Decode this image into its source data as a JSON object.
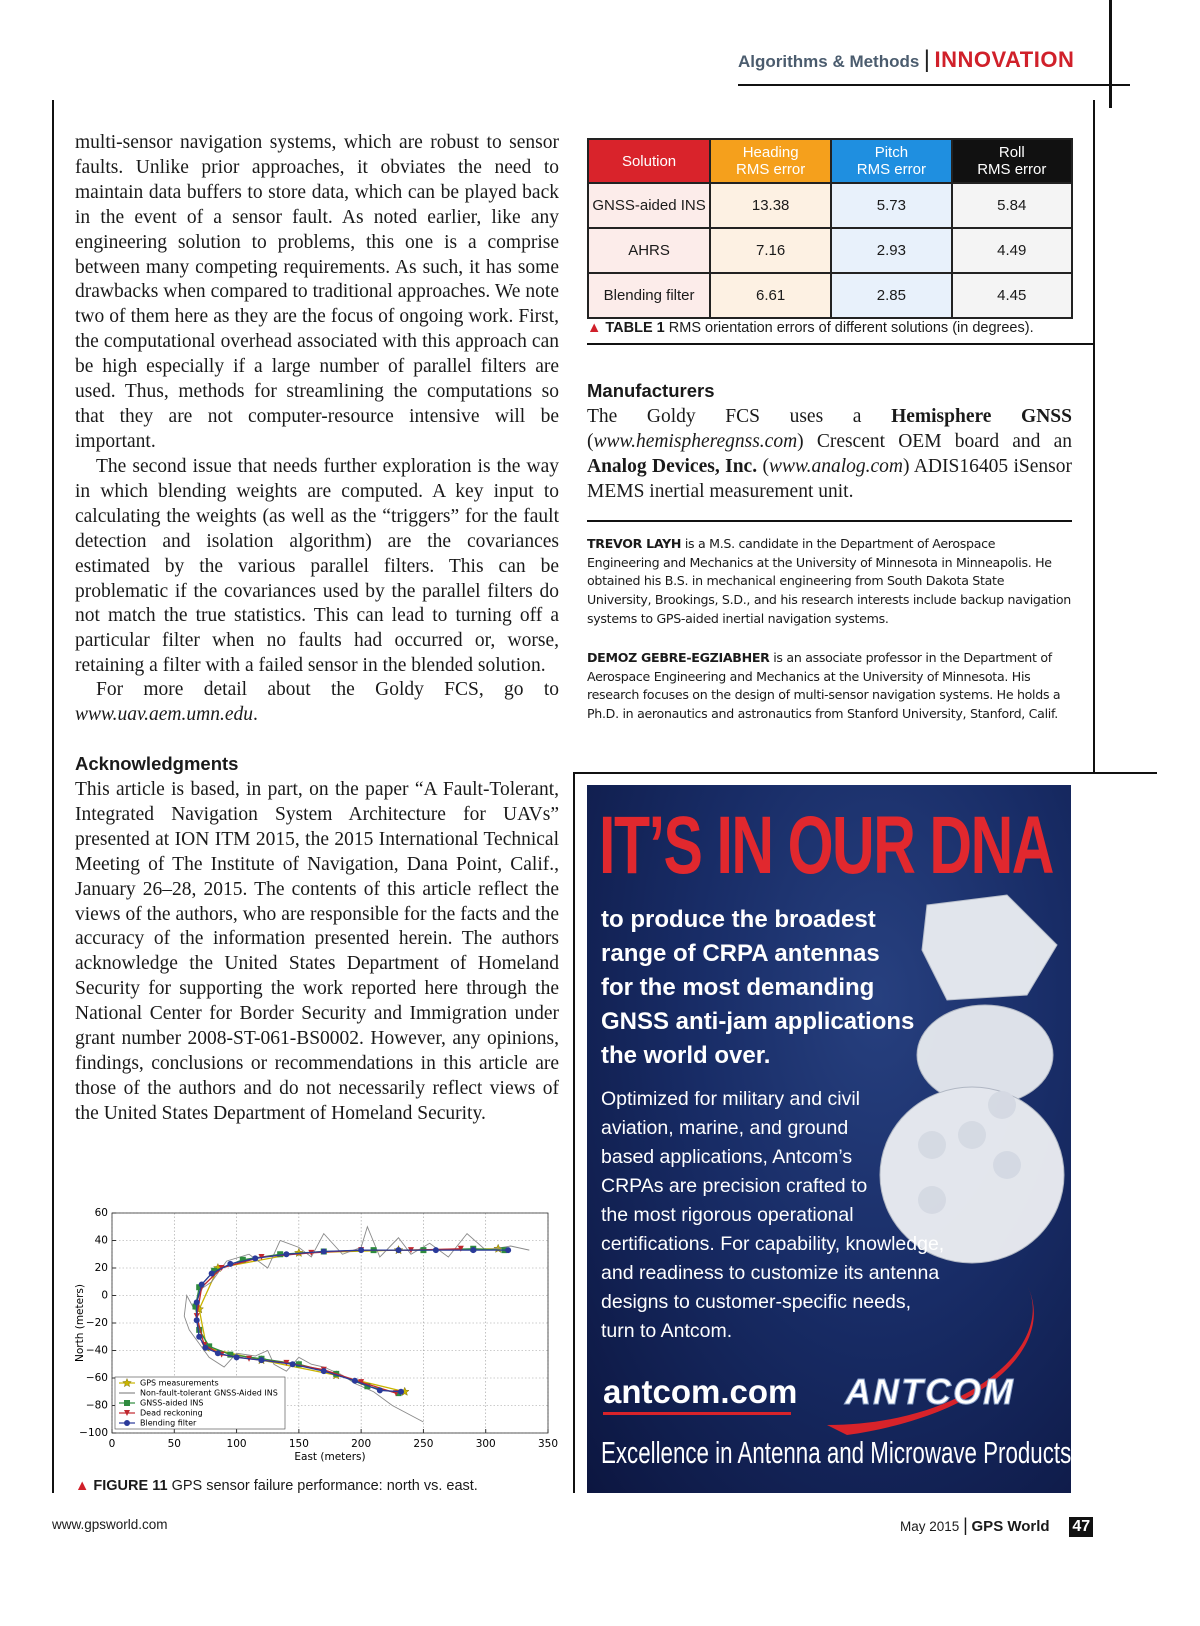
{
  "header": {
    "section": "Algorithms & Methods",
    "separator": "|",
    "department": "INNOVATION"
  },
  "left_column": {
    "paragraphs": [
      [
        {
          "text": "multi-sensor navigation systems, which are robust to sensor faults. Unlike prior approaches, it obviates the need to maintain data buffers to store data, which can be played back in the event of a sensor fault. As noted earlier, like any engineering solution to problems, this one is a comprise between many competing requirements. As such, it has some drawbacks when compared to traditional approaches. We note two of them here as they are the focus of ongoing work. First, the computational overhead associated with this approach can be high especially if a large number of parallel filters are used. Thus, methods for streamlining the computations so that they are not computer-resource intensive will be important.",
          "style": "plain"
        }
      ],
      [
        {
          "text": "The second issue that needs further exploration is the way in which blending weights are computed. A key input to calculating the weights (as well as the “triggers” for the fault detection and isolation algorithm) are the covariances estimated by the various parallel filters. This can be problematic if the covariances used by the parallel filters do not match the true statistics. This can lead to turning off a particular filter when no faults had occurred or, worse, retaining a filter with a failed sensor in the blended solution.",
          "style": "plain"
        }
      ],
      [
        {
          "text": "For more detail about the Goldy FCS, go to ",
          "style": "plain"
        },
        {
          "text": "www.uav.aem.umn.edu",
          "style": "italic"
        },
        {
          "text": ".",
          "style": "plain"
        }
      ]
    ],
    "ack_heading": "Acknowledgments",
    "ack_text": [
      {
        "text": "This article is based, in part, on the paper “A Fault-Tolerant, Integrated Navigation System Architecture for UAVs” presented at ION ITM 2015, the 2015 International Technical Meeting of The Institute of Navigation, Dana Point, Calif., January 26–28, 2015. The contents of this article reflect the views of the authors, who are responsible for the facts and the accuracy of the information presented herein. The authors acknowledge the United States Department of Homeland Security for supporting the work reported here through the National Center for Border Security and Immigration under grant number 2008-ST-061-BS0002. However, any opinions, findings, conclusions or recommendations in this article are those of the authors and do not necessarily reflect views of the United States Department of Homeland Security.",
        "style": "plain"
      }
    ]
  },
  "table": {
    "columns": [
      {
        "label": [
          "Solution"
        ],
        "color": "#d9232b",
        "cell_color": "#fcecea"
      },
      {
        "label": [
          "Heading",
          "RMS error"
        ],
        "color": "#f5a01c",
        "cell_color": "#fdf1e3"
      },
      {
        "label": [
          "Pitch",
          "RMS error"
        ],
        "color": "#1f8fe0",
        "cell_color": "#e8f1fb"
      },
      {
        "label": [
          "Roll",
          "RMS error"
        ],
        "color": "#111111",
        "cell_color": "#f4f4f4"
      }
    ],
    "rows": [
      [
        "GNSS-aided INS",
        "13.38",
        "5.73",
        "5.84"
      ],
      [
        "AHRS",
        "7.16",
        "2.93",
        "4.49"
      ],
      [
        "Blending filter",
        "6.61",
        "2.85",
        "4.45"
      ]
    ],
    "caption_label": "TABLE 1",
    "caption": "RMS orientation errors of different solutions (in degrees)."
  },
  "manufacturers": {
    "heading": "Manufacturers",
    "text": [
      {
        "text": "The Goldy FCS uses a ",
        "style": "plain"
      },
      {
        "text": "Hemisphere GNSS",
        "style": "bold"
      },
      {
        "text": " (",
        "style": "plain"
      },
      {
        "text": "www.hemispheregnss.com",
        "style": "italic"
      },
      {
        "text": ") Crescent OEM board and an ",
        "style": "plain"
      },
      {
        "text": "Analog Devices, Inc.",
        "style": "bold"
      },
      {
        "text": " (",
        "style": "plain"
      },
      {
        "text": "www.analog.com",
        "style": "italic"
      },
      {
        "text": ") ADIS16405 iSensor MEMS inertial measurement unit.",
        "style": "plain"
      }
    ]
  },
  "bios": [
    [
      {
        "text": "TREVOR LAYH",
        "style": "bold"
      },
      {
        "text": " is a M.S. candidate in the Department of Aerospace Engineering and Mechanics at the University of Minnesota in Minneapolis. He obtained his B.S. in mechanical engineering from South Dakota State University, Brookings, S.D., and his research interests include backup navigation systems to GPS-aided inertial navigation systems.",
        "style": "plain"
      }
    ],
    [
      {
        "text": "DEMOZ GEBRE-EGZIABHER",
        "style": "bold"
      },
      {
        "text": " is an associate professor in the Department of Aerospace Engineering and Mechanics at the University of Minnesota. His research focuses on the design of multi-sensor navigation systems. He holds a Ph.D. in aeronautics and astronautics from Stanford University, Stanford, Calif.",
        "style": "plain"
      }
    ]
  ],
  "ad": {
    "headline": "IT’S IN OUR DNA",
    "subhead": [
      "to produce the broadest",
      "range of CRPA antennas",
      "for the most demanding",
      "GNSS anti-jam applications",
      "the world over."
    ],
    "body": [
      "Optimized for military and civil",
      "aviation, marine, and ground",
      "based applications, Antcom’s",
      "CRPAs are precision crafted to",
      "the most rigorous operational",
      "certifications. For capability, knowledge,",
      "and readiness to customize its antenna",
      "designs to customer-specific needs,",
      "turn to Antcom."
    ],
    "url": "antcom.com",
    "logo": "ANTCOM",
    "tagline": "Excellence in Antenna and Microwave Products"
  },
  "figure": {
    "caption_label": "FIGURE 11",
    "caption": "GPS sensor failure performance: north vs. east.",
    "chart_data": {
      "type": "line",
      "xlabel": "East (meters)",
      "ylabel": "North (meters)",
      "xlim": [
        0,
        350
      ],
      "ylim": [
        -100,
        60
      ],
      "xticks": [
        0,
        50,
        100,
        150,
        200,
        250,
        300,
        350
      ],
      "yticks": [
        {
          "value": -100,
          "label": "−100"
        },
        {
          "value": -80,
          "label": "−80"
        },
        {
          "value": -60,
          "label": "−60"
        },
        {
          "value": -40,
          "label": "−40"
        },
        {
          "value": -20,
          "label": "−20"
        },
        0,
        20,
        40,
        60
      ],
      "grid": true,
      "legend": "lower left",
      "series": [
        {
          "name": "GPS measurements",
          "color": "#c9b400",
          "marker": "star",
          "x": [
            235,
            180,
            120,
            76,
            70,
            85,
            150,
            230,
            310
          ],
          "y": [
            -70,
            -58,
            -47,
            -38,
            -10,
            20,
            31,
            33,
            34
          ]
        },
        {
          "name": "Non-fault-tolerant GNSS-Aided INS",
          "color": "#8a8a8a",
          "marker": "none",
          "x": [
            250,
            225,
            210,
            195,
            185,
            170,
            160,
            150,
            140,
            130,
            125,
            115,
            100,
            90,
            78,
            70,
            62,
            58,
            60,
            66,
            72,
            80,
            92,
            110,
            125,
            135,
            150,
            160,
            170,
            185,
            200,
            205,
            215,
            230,
            240,
            255,
            270,
            285,
            300,
            320,
            335
          ],
          "y": [
            -92,
            -80,
            -70,
            -64,
            -58,
            -52,
            -50,
            -45,
            -55,
            -50,
            -40,
            -44,
            -42,
            -52,
            -45,
            -35,
            -25,
            -15,
            0,
            -10,
            5,
            10,
            25,
            30,
            20,
            40,
            35,
            28,
            45,
            30,
            35,
            50,
            28,
            42,
            30,
            38,
            28,
            45,
            33,
            36,
            33
          ]
        },
        {
          "name": "GNSS-aided INS",
          "color": "#2e8b3e",
          "marker": "square",
          "x": [
            230,
            205,
            180,
            150,
            120,
            95,
            78,
            70,
            67,
            70,
            82,
            105,
            135,
            170,
            210,
            250,
            290,
            315
          ],
          "y": [
            -71,
            -66,
            -57,
            -50,
            -46,
            -43,
            -37,
            -25,
            -8,
            6,
            18,
            26,
            30,
            32,
            33,
            33,
            34,
            33
          ]
        },
        {
          "name": "Dead reckoning",
          "color": "#c0282e",
          "marker": "triangle",
          "x": [
            228,
            200,
            170,
            140,
            110,
            88,
            74,
            68,
            72,
            88,
            120,
            160,
            200,
            240,
            280
          ],
          "y": [
            -71,
            -63,
            -54,
            -49,
            -46,
            -43,
            -36,
            -15,
            6,
            20,
            28,
            31,
            33,
            33,
            34
          ]
        },
        {
          "name": "Blending filter",
          "color": "#2a3a9a",
          "marker": "circle",
          "x": [
            232,
            215,
            195,
            170,
            145,
            120,
            100,
            85,
            75,
            70,
            68,
            68,
            72,
            80,
            95,
            115,
            140,
            170,
            200,
            230,
            260,
            290,
            318
          ],
          "y": [
            -70,
            -69,
            -62,
            -55,
            -50,
            -47,
            -45,
            -42,
            -38,
            -30,
            -18,
            -5,
            8,
            16,
            23,
            27,
            30,
            32,
            33,
            33,
            33,
            33,
            33
          ]
        }
      ]
    }
  },
  "footer": {
    "url": "www.gpsworld.com",
    "date": "May 2015",
    "separator": "|",
    "magazine": "GPS World",
    "page": "47"
  }
}
